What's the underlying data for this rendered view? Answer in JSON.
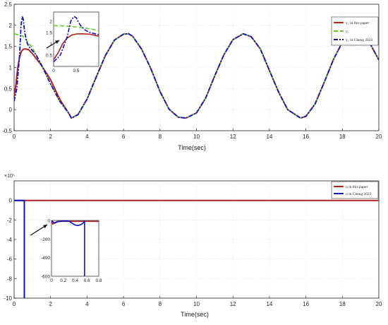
{
  "chart_data": [
    {
      "type": "line",
      "xlabel": "Time(sec)",
      "ylabel": "",
      "xlim": [
        0,
        20
      ],
      "ylim": [
        -0.5,
        2.5
      ],
      "x_ticks": [
        "0",
        "2",
        "4",
        "6",
        "8",
        "10",
        "12",
        "14",
        "16",
        "18",
        "20"
      ],
      "y_ticks": [
        "-0.5",
        "0",
        "0.5",
        "1",
        "1.5",
        "2",
        "2.5"
      ],
      "grid": true,
      "legend": "top-right",
      "series": [
        {
          "name": "y₁ in this paper",
          "color": "#b22222",
          "style": "solid",
          "x": [
            0,
            0.1,
            0.2,
            0.3,
            0.4,
            0.5,
            0.6,
            0.8,
            1,
            1.5,
            2,
            2.5,
            3,
            3.14,
            3.5,
            4,
            4.5,
            5,
            5.5,
            6,
            6.28,
            6.5,
            7,
            7.5,
            8,
            8.5,
            9,
            9.42,
            10,
            10.5,
            11,
            11.5,
            12,
            12.57,
            13,
            13.5,
            14,
            14.5,
            15,
            15.71,
            16,
            16.5,
            17,
            17.5,
            18,
            18.5,
            18.85,
            19.5,
            20
          ],
          "y": [
            0.3,
            0.6,
            1.0,
            1.25,
            1.38,
            1.43,
            1.44,
            1.42,
            1.33,
            1.05,
            0.71,
            0.25,
            -0.09,
            -0.2,
            -0.12,
            0.25,
            0.77,
            1.28,
            1.65,
            1.79,
            1.8,
            1.74,
            1.43,
            0.97,
            0.43,
            0.01,
            -0.18,
            -0.2,
            -0.08,
            0.27,
            0.8,
            1.3,
            1.66,
            1.8,
            1.73,
            1.44,
            0.93,
            0.42,
            0.0,
            -0.2,
            -0.16,
            0.13,
            0.64,
            1.18,
            1.6,
            1.8,
            1.8,
            1.58,
            1.18
          ]
        },
        {
          "name": "yᵣ",
          "color": "#66cc22",
          "style": "dashed",
          "x": [
            0,
            0.5,
            1,
            1.5,
            2,
            2.5,
            3,
            3.14,
            3.5,
            4,
            4.5,
            5,
            5.5,
            6,
            6.28,
            6.5,
            7,
            7.5,
            8,
            8.5,
            9,
            9.42,
            10,
            10.5,
            11,
            11.5,
            12,
            12.57,
            13,
            13.5,
            14,
            14.5,
            15,
            15.71,
            16,
            16.5,
            17,
            17.5,
            18,
            18.5,
            18.85,
            19.5,
            20
          ],
          "y": [
            1.8,
            1.74,
            1.47,
            1.06,
            0.61,
            0.2,
            -0.09,
            -0.2,
            -0.12,
            0.25,
            0.77,
            1.28,
            1.65,
            1.79,
            1.8,
            1.74,
            1.43,
            0.97,
            0.43,
            0.01,
            -0.18,
            -0.2,
            -0.08,
            0.27,
            0.8,
            1.3,
            1.66,
            1.8,
            1.73,
            1.44,
            0.93,
            0.42,
            0.0,
            -0.2,
            -0.16,
            0.13,
            0.64,
            1.18,
            1.6,
            1.8,
            1.8,
            1.58,
            1.18
          ]
        },
        {
          "name": "y₁ in Cheng 2023",
          "color": "#1010cc",
          "style": "dashdot",
          "x": [
            0,
            0.15,
            0.3,
            0.38,
            0.45,
            0.5,
            0.55,
            0.6,
            0.7,
            0.8,
            1,
            1.2,
            1.5,
            2,
            2.5,
            3,
            3.14,
            3.5,
            4,
            4.5,
            5,
            5.5,
            6,
            6.28,
            6.5,
            7,
            7.5,
            8,
            8.5,
            9,
            9.42,
            10,
            10.5,
            11,
            11.5,
            12,
            12.57,
            13,
            13.5,
            14,
            14.5,
            15,
            15.71,
            16,
            16.5,
            17,
            17.5,
            18,
            18.5,
            18.85,
            19.5,
            20
          ],
          "y": [
            0.2,
            0.5,
            1.3,
            2.0,
            2.2,
            2.15,
            1.95,
            1.8,
            1.6,
            1.5,
            1.4,
            1.3,
            1.06,
            0.61,
            0.2,
            -0.09,
            -0.2,
            -0.12,
            0.25,
            0.77,
            1.28,
            1.65,
            1.79,
            1.8,
            1.74,
            1.43,
            0.97,
            0.43,
            0.01,
            -0.18,
            -0.2,
            -0.08,
            0.27,
            0.8,
            1.3,
            1.66,
            1.8,
            1.73,
            1.44,
            0.93,
            0.42,
            0.0,
            -0.2,
            -0.16,
            0.13,
            0.64,
            1.18,
            1.6,
            1.8,
            1.8,
            1.58,
            1.18
          ]
        }
      ],
      "inset": {
        "xlim": [
          0,
          1
        ],
        "ylim": [
          0,
          2.4
        ],
        "x_ticks": [
          "0",
          "0.5"
        ],
        "y_ticks": [
          "0.5",
          "1",
          "1.5",
          "2"
        ],
        "series": [
          {
            "name": "y₁ in this paper",
            "x": [
              0,
              0.1,
              0.2,
              0.3,
              0.4,
              0.5,
              0.6,
              0.7,
              0.8,
              0.9,
              1
            ],
            "y": [
              0.3,
              0.6,
              1.0,
              1.25,
              1.38,
              1.43,
              1.44,
              1.43,
              1.42,
              1.38,
              1.33
            ]
          },
          {
            "name": "yᵣ",
            "x": [
              0,
              0.2,
              0.4,
              0.6,
              0.8,
              1
            ],
            "y": [
              1.8,
              1.79,
              1.76,
              1.72,
              1.66,
              1.58
            ]
          },
          {
            "name": "y₁ in Cheng 2023",
            "x": [
              0,
              0.15,
              0.3,
              0.38,
              0.45,
              0.5,
              0.55,
              0.6,
              0.7,
              0.8,
              0.9,
              1
            ],
            "y": [
              0.2,
              0.5,
              1.3,
              2.0,
              2.2,
              2.15,
              1.95,
              1.8,
              1.6,
              1.5,
              1.45,
              1.4
            ]
          }
        ]
      }
    },
    {
      "type": "line",
      "xlabel": "Time(sec)",
      "ylabel": "",
      "exponent_label": "×10⁵",
      "xlim": [
        0,
        20
      ],
      "ylim": [
        -10,
        2
      ],
      "x_ticks": [
        "0",
        "2",
        "4",
        "6",
        "8",
        "10",
        "12",
        "14",
        "16",
        "18",
        "20"
      ],
      "y_ticks": [
        "-10",
        "-8",
        "-6",
        "-4",
        "-2",
        "0"
      ],
      "grid": true,
      "legend": "top-right",
      "series": [
        {
          "name": "u in this paper",
          "color": "#b22222",
          "style": "solid",
          "x": [
            0,
            20
          ],
          "y": [
            0,
            0
          ]
        },
        {
          "name": "u in Cheng 2023",
          "color": "#1010cc",
          "style": "solid",
          "x": [
            0,
            0.56,
            0.56,
            0.58
          ],
          "y": [
            0,
            0,
            -10,
            -10
          ]
        }
      ],
      "inset": {
        "xlim": [
          0,
          0.8
        ],
        "ylim": [
          -600,
          0
        ],
        "x_ticks": [
          "0",
          "0.2",
          "0.4",
          "0.6",
          "0.8"
        ],
        "y_ticks": [
          "0",
          "-200",
          "-400",
          "-600"
        ],
        "series": [
          {
            "name": "u in this paper",
            "x": [
              0,
              0.02,
              0.05,
              0.1,
              0.2,
              0.3,
              0.4,
              0.5,
              0.6,
              0.8
            ],
            "y": [
              0,
              -40,
              -25,
              -10,
              -10,
              -10,
              -10,
              -10,
              -10,
              -10
            ]
          },
          {
            "name": "u in Cheng 2023",
            "x": [
              0,
              0.05,
              0.1,
              0.15,
              0.2,
              0.25,
              0.3,
              0.35,
              0.4,
              0.45,
              0.5,
              0.53,
              0.55,
              0.56,
              0.56
            ],
            "y": [
              0,
              -30,
              -15,
              -10,
              -5,
              -5,
              -10,
              -30,
              -50,
              -55,
              -45,
              -30,
              -20,
              0,
              -600
            ]
          }
        ]
      }
    }
  ]
}
